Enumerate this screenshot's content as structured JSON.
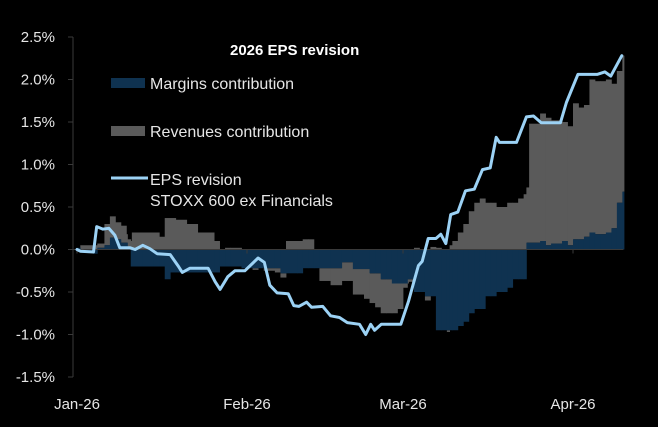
{
  "chart_data": {
    "type": "area",
    "title": "2026 EPS revision",
    "xlabel": "",
    "ylabel": "",
    "ylim": [
      -1.5,
      2.5
    ],
    "yticks": [
      2.5,
      2.0,
      1.5,
      1.0,
      0.5,
      0.0,
      -0.5,
      -1.0,
      -1.5
    ],
    "ytick_labels": [
      "2.5%",
      "2.0%",
      "1.5%",
      "1.0%",
      "0.5%",
      "0.0%",
      "-0.5%",
      "-1.0%",
      "-1.5%"
    ],
    "xticks_day": [
      0,
      31,
      59,
      90
    ],
    "xtick_labels": [
      "Jan-26",
      "Feb-26",
      "Mar-26",
      "Apr-26"
    ],
    "xlim_day": [
      0,
      99
    ],
    "x_unit": "days since 1 Jan 2026",
    "grid": false,
    "legend_position": "top-left",
    "colors": {
      "margins": "#0f3250",
      "revenues": "#5a5a5a",
      "eps": "#9cd2f5",
      "axis": "#3a3a3a",
      "background": "#000000"
    },
    "series": [
      {
        "name": "Margins contribution",
        "kind": "stacked-area",
        "points": [
          [
            0,
            0.02
          ],
          [
            0.6,
            -0.02
          ],
          [
            3,
            -0.05
          ],
          [
            3.7,
            0.02
          ],
          [
            5,
            0.05
          ],
          [
            6,
            0.14
          ],
          [
            7,
            0.12
          ],
          [
            8,
            0.08
          ],
          [
            9.2,
            0.02
          ],
          [
            9.8,
            -0.2
          ],
          [
            14,
            -0.2
          ],
          [
            16,
            -0.35
          ],
          [
            17,
            -0.27
          ],
          [
            25,
            -0.27
          ],
          [
            26,
            -0.2
          ],
          [
            28,
            -0.2
          ],
          [
            30,
            -0.22
          ],
          [
            33,
            -0.22
          ],
          [
            34,
            -0.22
          ],
          [
            37,
            -0.28
          ],
          [
            40,
            -0.28
          ],
          [
            41,
            -0.22
          ],
          [
            44,
            -0.22
          ],
          [
            46,
            -0.22
          ],
          [
            48,
            -0.15
          ],
          [
            50,
            -0.23
          ],
          [
            53,
            -0.28
          ],
          [
            55,
            -0.35
          ],
          [
            57,
            -0.4
          ],
          [
            59,
            -0.4
          ],
          [
            59.8,
            -0.35
          ],
          [
            60,
            -0.35
          ],
          [
            61,
            -0.5
          ],
          [
            63,
            -0.55
          ],
          [
            65,
            -0.95
          ],
          [
            67,
            -0.95
          ],
          [
            68,
            -0.95
          ],
          [
            69,
            -0.9
          ],
          [
            70,
            -0.85
          ],
          [
            71,
            -0.75
          ],
          [
            72,
            -0.7
          ],
          [
            74,
            -0.55
          ],
          [
            76,
            -0.5
          ],
          [
            78,
            -0.45
          ],
          [
            79,
            -0.35
          ],
          [
            80,
            -0.35
          ],
          [
            81,
            -0.35
          ],
          [
            81.5,
            0.08
          ],
          [
            82,
            0.08
          ],
          [
            84,
            0.1
          ],
          [
            85,
            0.05
          ],
          [
            86,
            0.07
          ],
          [
            88,
            0.1
          ],
          [
            89,
            0.05
          ],
          [
            90,
            0.12
          ],
          [
            91,
            0.12
          ],
          [
            92,
            0.15
          ],
          [
            93,
            0.2
          ],
          [
            94,
            0.18
          ],
          [
            96,
            0.2
          ],
          [
            97,
            0.25
          ],
          [
            98,
            0.55
          ],
          [
            99,
            0.68
          ]
        ]
      },
      {
        "name": "Revenues contribution",
        "kind": "stacked-area",
        "points": [
          [
            0,
            0.0
          ],
          [
            0.6,
            0.05
          ],
          [
            5,
            0.25
          ],
          [
            7,
            0.2
          ],
          [
            9,
            0.1
          ],
          [
            10,
            0.2
          ],
          [
            12,
            0.2
          ],
          [
            14,
            0.2
          ],
          [
            15,
            0.15
          ],
          [
            16,
            0.37
          ],
          [
            18,
            0.35
          ],
          [
            20,
            0.3
          ],
          [
            22,
            0.2
          ],
          [
            25,
            0.1
          ],
          [
            26,
            0.0
          ],
          [
            27,
            0.02
          ],
          [
            30,
            0.0
          ],
          [
            31,
            0.0
          ],
          [
            32,
            -0.02
          ],
          [
            33,
            0.0
          ],
          [
            34,
            -0.03
          ],
          [
            36,
            -0.05
          ],
          [
            37,
            -0.05
          ],
          [
            38,
            0.1
          ],
          [
            40,
            0.1
          ],
          [
            41,
            0.12
          ],
          [
            42,
            0.12
          ],
          [
            43,
            0.0
          ],
          [
            44,
            -0.15
          ],
          [
            46,
            -0.2
          ],
          [
            48,
            -0.22
          ],
          [
            50,
            -0.3
          ],
          [
            52,
            -0.35
          ],
          [
            54,
            -0.4
          ],
          [
            56,
            -0.4
          ],
          [
            57,
            -0.35
          ],
          [
            58,
            -0.3
          ],
          [
            59,
            -0.05
          ],
          [
            60,
            -0.03
          ],
          [
            61,
            0.02
          ],
          [
            62,
            0.0
          ],
          [
            63,
            -0.05
          ],
          [
            64,
            0.03
          ],
          [
            65,
            0.02
          ],
          [
            66,
            0.0
          ],
          [
            67,
            -0.02
          ],
          [
            67.5,
            0.05
          ],
          [
            68,
            0.1
          ],
          [
            69,
            0.2
          ],
          [
            70,
            0.3
          ],
          [
            71,
            0.45
          ],
          [
            72,
            0.55
          ],
          [
            73,
            0.6
          ],
          [
            74,
            0.55
          ],
          [
            75,
            0.55
          ],
          [
            76,
            0.5
          ],
          [
            77,
            0.5
          ],
          [
            78,
            0.55
          ],
          [
            79,
            0.55
          ],
          [
            80,
            0.6
          ],
          [
            81,
            0.65
          ],
          [
            82,
            1.4
          ],
          [
            84,
            1.5
          ],
          [
            86,
            1.45
          ],
          [
            88,
            1.4
          ],
          [
            90,
            1.6
          ],
          [
            91,
            1.55
          ],
          [
            93,
            1.8
          ],
          [
            95,
            1.8
          ],
          [
            96,
            1.8
          ],
          [
            97,
            1.7
          ],
          [
            98,
            1.55
          ],
          [
            99,
            1.6
          ]
        ]
      },
      {
        "name": "EPS revision STOXX 600 ex Financials",
        "kind": "line",
        "points": [
          [
            0,
            0.0
          ],
          [
            0.6,
            -0.02
          ],
          [
            3,
            -0.03
          ],
          [
            3.6,
            0.27
          ],
          [
            4.7,
            0.24
          ],
          [
            5.8,
            0.25
          ],
          [
            6.9,
            0.17
          ],
          [
            7.8,
            0.02
          ],
          [
            9.7,
            0.02
          ],
          [
            10.6,
            0.0
          ],
          [
            12,
            0.05
          ],
          [
            13.3,
            0.01
          ],
          [
            14.6,
            -0.05
          ],
          [
            17,
            -0.06
          ],
          [
            18.4,
            -0.19
          ],
          [
            19.2,
            -0.27
          ],
          [
            20.6,
            -0.22
          ],
          [
            23.9,
            -0.22
          ],
          [
            25.2,
            -0.38
          ],
          [
            26.1,
            -0.47
          ],
          [
            27.5,
            -0.32
          ],
          [
            28.8,
            -0.25
          ],
          [
            30.6,
            -0.25
          ],
          [
            33,
            -0.1
          ],
          [
            34.1,
            -0.15
          ],
          [
            35.1,
            -0.42
          ],
          [
            36.4,
            -0.51
          ],
          [
            38.4,
            -0.52
          ],
          [
            39.4,
            -0.66
          ],
          [
            40.3,
            -0.67
          ],
          [
            41.7,
            -0.62
          ],
          [
            42.6,
            -0.68
          ],
          [
            44.6,
            -0.67
          ],
          [
            46,
            -0.78
          ],
          [
            47.6,
            -0.8
          ],
          [
            49,
            -0.86
          ],
          [
            51.2,
            -0.88
          ],
          [
            52.3,
            -1.0
          ],
          [
            53.2,
            -0.88
          ],
          [
            53.9,
            -0.95
          ],
          [
            55.1,
            -0.88
          ],
          [
            58.6,
            -0.88
          ],
          [
            60,
            -0.61
          ],
          [
            60.9,
            -0.4
          ],
          [
            61.8,
            -0.19
          ],
          [
            62.5,
            -0.14
          ],
          [
            63.6,
            0.13
          ],
          [
            65,
            0.13
          ],
          [
            65.9,
            0.18
          ],
          [
            66.8,
            0.07
          ],
          [
            67.7,
            0.41
          ],
          [
            69,
            0.44
          ],
          [
            70.4,
            0.69
          ],
          [
            72,
            0.71
          ],
          [
            73.5,
            0.94
          ],
          [
            74.9,
            0.96
          ],
          [
            76,
            1.32
          ],
          [
            76.6,
            1.26
          ],
          [
            79.7,
            1.26
          ],
          [
            81.5,
            1.56
          ],
          [
            82.8,
            1.57
          ],
          [
            84.2,
            1.49
          ],
          [
            87.7,
            1.49
          ],
          [
            88.8,
            1.73
          ],
          [
            90.9,
            2.06
          ],
          [
            94.4,
            2.06
          ],
          [
            95.8,
            2.09
          ],
          [
            96.9,
            2.04
          ],
          [
            98.9,
            2.28
          ]
        ]
      }
    ],
    "legend": [
      {
        "label": "Margins contribution",
        "type": "patch",
        "color": "#0f3250"
      },
      {
        "label": "Revenues contribution",
        "type": "patch",
        "color": "#5a5a5a"
      },
      {
        "label": "EPS revision",
        "label2": "STOXX 600 ex Financials",
        "type": "line",
        "color": "#9cd2f5"
      }
    ]
  }
}
